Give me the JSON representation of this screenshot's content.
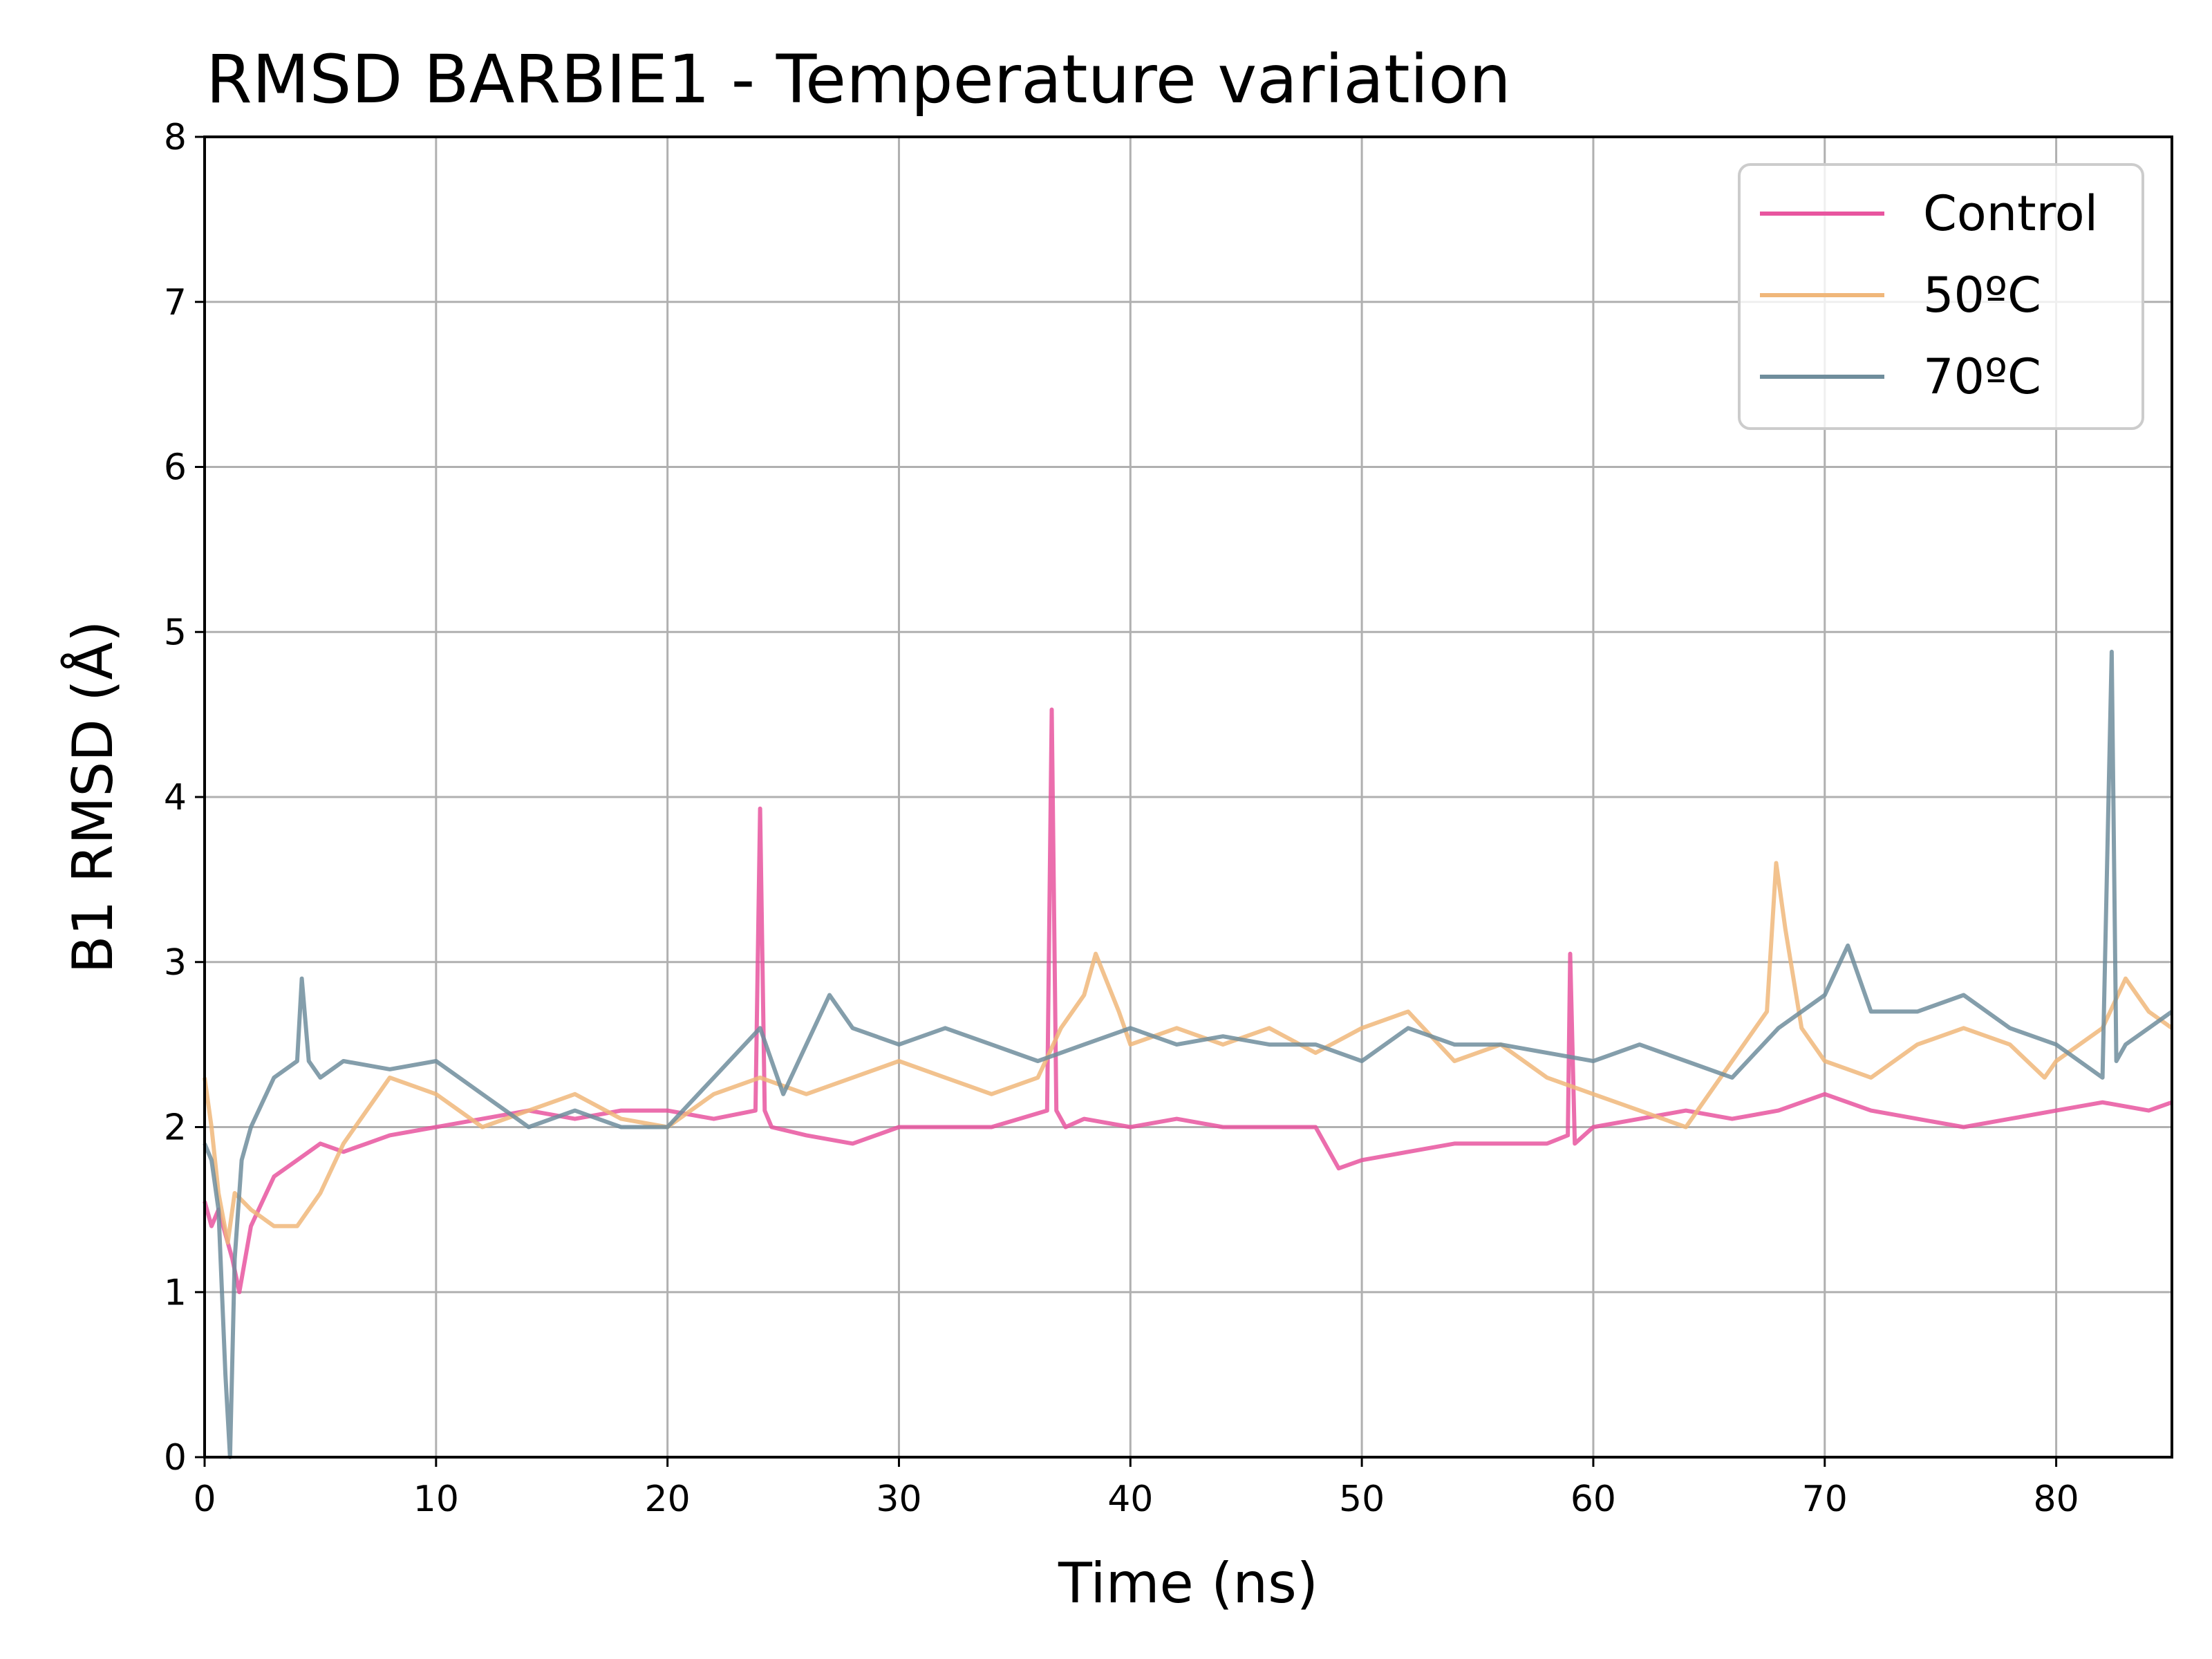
{
  "chart_data": {
    "type": "line",
    "title": "RMSD BARBIE1 - Temperature variation",
    "xlabel": "Time (ns)",
    "ylabel": "B1 RMSD (Å)",
    "xlim": [
      0,
      85
    ],
    "ylim": [
      0,
      8
    ],
    "x_ticks": [
      "0",
      "10",
      "20",
      "30",
      "40",
      "50",
      "60",
      "70",
      "80"
    ],
    "y_ticks": [
      "0",
      "1",
      "2",
      "3",
      "4",
      "5",
      "6",
      "7",
      "8"
    ],
    "grid": true,
    "legend_position": "top-right",
    "series": [
      {
        "name": "Control",
        "color": "#e8559f",
        "x": [
          0,
          0.3,
          0.6,
          1.0,
          1.2,
          1.5,
          2.0,
          3.0,
          4.0,
          5.0,
          6.0,
          7.0,
          8.0,
          10.0,
          12.0,
          14.0,
          16.0,
          18.0,
          20.0,
          22.0,
          23.8,
          24.0,
          24.2,
          24.5,
          26.0,
          28.0,
          30.0,
          32.0,
          34.0,
          36.4,
          36.6,
          36.8,
          37.2,
          38.0,
          40.0,
          42.0,
          44.0,
          46.0,
          48.0,
          49.0,
          50.0,
          52.0,
          54.0,
          56.0,
          58.0,
          58.9,
          59.0,
          59.2,
          60.0,
          62.0,
          64.0,
          66.0,
          68.0,
          70.0,
          72.0,
          74.0,
          76.0,
          78.0,
          80.0,
          82.0,
          84.0,
          85.0
        ],
        "y": [
          1.55,
          1.4,
          1.5,
          1.3,
          1.2,
          1.0,
          1.4,
          1.7,
          1.8,
          1.9,
          1.85,
          1.9,
          1.95,
          2.0,
          2.05,
          2.1,
          2.05,
          2.1,
          2.1,
          2.05,
          2.1,
          3.93,
          2.1,
          2.0,
          1.95,
          1.9,
          2.0,
          2.0,
          2.0,
          2.1,
          4.53,
          2.1,
          2.0,
          2.05,
          2.0,
          2.05,
          2.0,
          2.0,
          2.0,
          1.75,
          1.8,
          1.85,
          1.9,
          1.9,
          1.9,
          1.95,
          3.05,
          1.9,
          2.0,
          2.05,
          2.1,
          2.05,
          2.1,
          2.2,
          2.1,
          2.05,
          2.0,
          2.05,
          2.1,
          2.15,
          2.1,
          2.15
        ]
      },
      {
        "name": "50ºC",
        "color": "#f0b77a",
        "x": [
          0,
          0.3,
          0.6,
          1.0,
          1.3,
          2.0,
          3.0,
          4.0,
          5.0,
          6.0,
          7.0,
          8.0,
          10.0,
          12.0,
          14.0,
          16.0,
          18.0,
          20.0,
          22.0,
          24.0,
          26.0,
          28.0,
          30.0,
          32.0,
          34.0,
          36.0,
          37.0,
          38.0,
          38.5,
          39.5,
          40.0,
          42.0,
          44.0,
          46.0,
          48.0,
          50.0,
          52.0,
          54.0,
          56.0,
          58.0,
          60.0,
          62.0,
          64.0,
          66.0,
          67.5,
          67.9,
          68.3,
          69.0,
          70.0,
          72.0,
          74.0,
          76.0,
          78.0,
          79.5,
          80.0,
          82.0,
          83.0,
          84.0,
          85.0
        ],
        "y": [
          2.3,
          2.0,
          1.6,
          1.3,
          1.6,
          1.5,
          1.4,
          1.4,
          1.6,
          1.9,
          2.1,
          2.3,
          2.2,
          2.0,
          2.1,
          2.2,
          2.05,
          2.0,
          2.2,
          2.3,
          2.2,
          2.3,
          2.4,
          2.3,
          2.2,
          2.3,
          2.6,
          2.8,
          3.05,
          2.7,
          2.5,
          2.6,
          2.5,
          2.6,
          2.45,
          2.6,
          2.7,
          2.4,
          2.5,
          2.3,
          2.2,
          2.1,
          2.0,
          2.4,
          2.7,
          3.6,
          3.2,
          2.6,
          2.4,
          2.3,
          2.5,
          2.6,
          2.5,
          2.3,
          2.4,
          2.6,
          2.9,
          2.7,
          2.6
        ]
      },
      {
        "name": "70ºC",
        "color": "#6f8d9c",
        "x": [
          0,
          0.3,
          0.6,
          0.9,
          1.1,
          1.3,
          1.6,
          2.0,
          3.0,
          4.0,
          4.2,
          4.5,
          5.0,
          6.0,
          8.0,
          10.0,
          12.0,
          14.0,
          16.0,
          18.0,
          20.0,
          22.0,
          24.0,
          25.0,
          26.0,
          27.0,
          28.0,
          30.0,
          32.0,
          34.0,
          36.0,
          38.0,
          40.0,
          42.0,
          44.0,
          46.0,
          48.0,
          50.0,
          52.0,
          54.0,
          56.0,
          58.0,
          60.0,
          62.0,
          64.0,
          66.0,
          68.0,
          70.0,
          71.0,
          72.0,
          74.0,
          76.0,
          78.0,
          80.0,
          82.0,
          82.4,
          82.6,
          83.0,
          84.0,
          85.0
        ],
        "y": [
          1.9,
          1.8,
          1.5,
          0.5,
          0.0,
          1.2,
          1.8,
          2.0,
          2.3,
          2.4,
          2.9,
          2.4,
          2.3,
          2.4,
          2.35,
          2.4,
          2.2,
          2.0,
          2.1,
          2.0,
          2.0,
          2.3,
          2.6,
          2.2,
          2.5,
          2.8,
          2.6,
          2.5,
          2.6,
          2.5,
          2.4,
          2.5,
          2.6,
          2.5,
          2.55,
          2.5,
          2.5,
          2.4,
          2.6,
          2.5,
          2.5,
          2.45,
          2.4,
          2.5,
          2.4,
          2.3,
          2.6,
          2.8,
          3.1,
          2.7,
          2.7,
          2.8,
          2.6,
          2.5,
          2.3,
          4.88,
          2.4,
          2.5,
          2.6,
          2.7
        ]
      }
    ]
  }
}
